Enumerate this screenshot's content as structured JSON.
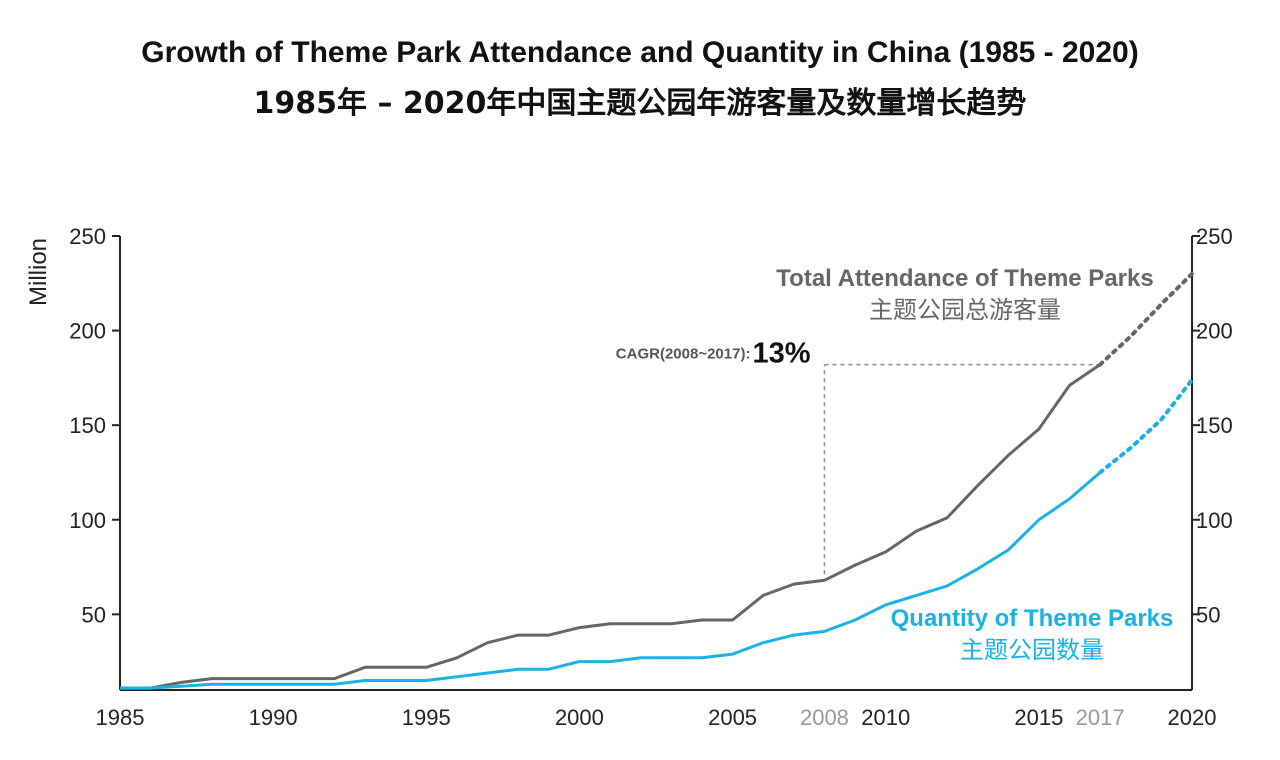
{
  "header": {
    "title": "Growth of Theme Park Attendance and Quantity in China (1985 - 2020)",
    "subtitle": "1985年 – 2020年中国主题公园年游客量及数量增长趋势"
  },
  "chart_data": {
    "type": "line",
    "ylabel": "Million",
    "ylim": [
      10,
      250
    ],
    "y2lim": [
      10,
      250
    ],
    "yticks": [
      50,
      100,
      150,
      200,
      250
    ],
    "xlim": [
      1985,
      2020
    ],
    "xticks": [
      {
        "value": 1985,
        "label": "1985",
        "muted": false
      },
      {
        "value": 1990,
        "label": "1990",
        "muted": false
      },
      {
        "value": 1995,
        "label": "1995",
        "muted": false
      },
      {
        "value": 2000,
        "label": "2000",
        "muted": false
      },
      {
        "value": 2005,
        "label": "2005",
        "muted": false
      },
      {
        "value": 2008,
        "label": "2008",
        "muted": true
      },
      {
        "value": 2010,
        "label": "2010",
        "muted": false
      },
      {
        "value": 2015,
        "label": "2015",
        "muted": false
      },
      {
        "value": 2017,
        "label": "2017",
        "muted": true
      },
      {
        "value": 2020,
        "label": "2020",
        "muted": false
      }
    ],
    "series": [
      {
        "name": "Total Attendance of Theme Parks",
        "name_cn": "主题公园总游客量",
        "color": "#666666",
        "points": [
          [
            1985,
            11
          ],
          [
            1986,
            11
          ],
          [
            1987,
            14
          ],
          [
            1988,
            16
          ],
          [
            1989,
            16
          ],
          [
            1990,
            16
          ],
          [
            1991,
            16
          ],
          [
            1992,
            16
          ],
          [
            1993,
            22
          ],
          [
            1994,
            22
          ],
          [
            1995,
            22
          ],
          [
            1996,
            27
          ],
          [
            1997,
            35
          ],
          [
            1998,
            39
          ],
          [
            1999,
            39
          ],
          [
            2000,
            43
          ],
          [
            2001,
            45
          ],
          [
            2002,
            45
          ],
          [
            2003,
            45
          ],
          [
            2004,
            47
          ],
          [
            2005,
            47
          ],
          [
            2006,
            60
          ],
          [
            2007,
            66
          ],
          [
            2008,
            68
          ],
          [
            2009,
            76
          ],
          [
            2010,
            83
          ],
          [
            2011,
            94
          ],
          [
            2012,
            101
          ],
          [
            2013,
            118
          ],
          [
            2014,
            134
          ],
          [
            2015,
            148
          ],
          [
            2016,
            171
          ],
          [
            2017,
            182
          ]
        ],
        "projection": [
          [
            2017,
            182
          ],
          [
            2018,
            197
          ],
          [
            2019,
            214
          ],
          [
            2020,
            230
          ]
        ]
      },
      {
        "name": "Quantity of Theme Parks",
        "name_cn": "主题公园数量",
        "color": "#1ab2e6",
        "points": [
          [
            1985,
            11
          ],
          [
            1986,
            11
          ],
          [
            1987,
            12
          ],
          [
            1988,
            13
          ],
          [
            1989,
            13
          ],
          [
            1990,
            13
          ],
          [
            1991,
            13
          ],
          [
            1992,
            13
          ],
          [
            1993,
            15
          ],
          [
            1994,
            15
          ],
          [
            1995,
            15
          ],
          [
            1996,
            17
          ],
          [
            1997,
            19
          ],
          [
            1998,
            21
          ],
          [
            1999,
            21
          ],
          [
            2000,
            25
          ],
          [
            2001,
            25
          ],
          [
            2002,
            27
          ],
          [
            2003,
            27
          ],
          [
            2004,
            27
          ],
          [
            2005,
            29
          ],
          [
            2006,
            35
          ],
          [
            2007,
            39
          ],
          [
            2008,
            41
          ],
          [
            2009,
            47
          ],
          [
            2010,
            55
          ],
          [
            2011,
            60
          ],
          [
            2012,
            65
          ],
          [
            2013,
            74
          ],
          [
            2014,
            84
          ],
          [
            2015,
            100
          ],
          [
            2016,
            111
          ],
          [
            2017,
            125
          ]
        ],
        "projection": [
          [
            2017,
            125
          ],
          [
            2018,
            138
          ],
          [
            2019,
            153
          ],
          [
            2020,
            174
          ]
        ]
      }
    ],
    "annotation": {
      "label": "CAGR(2008~2017):",
      "value": "13%",
      "x_from": 2008,
      "x_to": 2017
    }
  }
}
